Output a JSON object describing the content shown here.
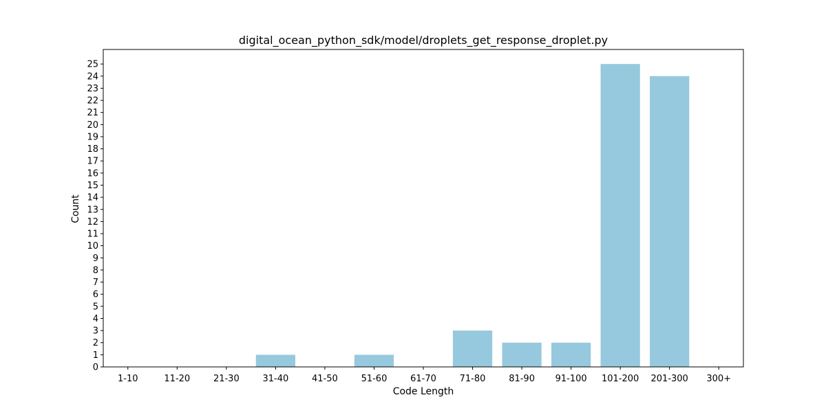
{
  "chart_data": {
    "type": "bar",
    "title": "digital_ocean_python_sdk/model/droplets_get_response_droplet.py",
    "xlabel": "Code Length",
    "ylabel": "Count",
    "categories": [
      "1-10",
      "11-20",
      "21-30",
      "31-40",
      "41-50",
      "51-60",
      "61-70",
      "71-80",
      "81-90",
      "91-100",
      "101-200",
      "201-300",
      "300+"
    ],
    "values": [
      0,
      0,
      0,
      1,
      0,
      1,
      0,
      3,
      2,
      2,
      25,
      24,
      0
    ],
    "ylim": [
      0,
      26.2
    ],
    "yticks": [
      0,
      1,
      2,
      3,
      4,
      5,
      6,
      7,
      8,
      9,
      10,
      11,
      12,
      13,
      14,
      15,
      16,
      17,
      18,
      19,
      20,
      21,
      22,
      23,
      24,
      25
    ],
    "bar_color": "#96c9dd",
    "grid": false,
    "legend": "none"
  }
}
